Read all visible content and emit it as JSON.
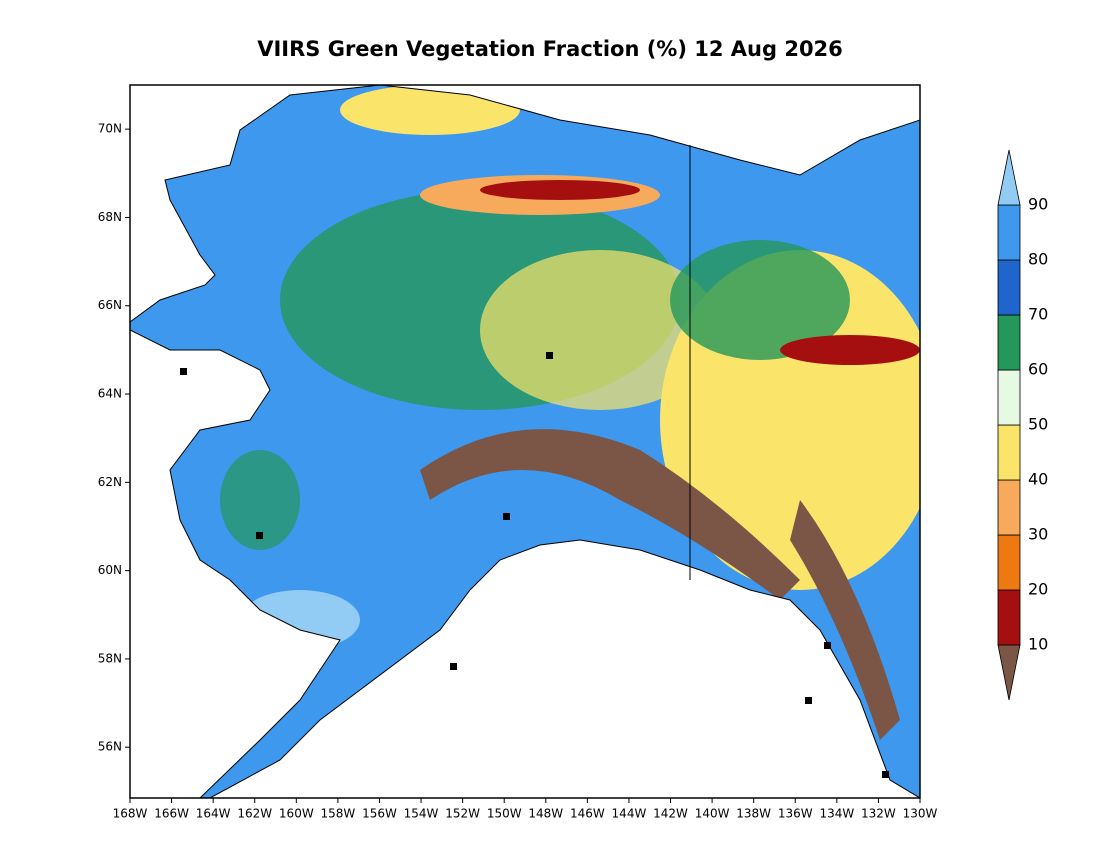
{
  "title": "VIIRS Green Vegetation Fraction (%) 12 Aug 2026",
  "map": {
    "xlim": [
      -168,
      -130
    ],
    "ylim": [
      54.85,
      71
    ],
    "xticks": [
      {
        "value": -168,
        "label": "168W"
      },
      {
        "value": -166,
        "label": "166W"
      },
      {
        "value": -164,
        "label": "164W"
      },
      {
        "value": -162,
        "label": "162W"
      },
      {
        "value": -160,
        "label": "160W"
      },
      {
        "value": -158,
        "label": "158W"
      },
      {
        "value": -156,
        "label": "156W"
      },
      {
        "value": -154,
        "label": "154W"
      },
      {
        "value": -152,
        "label": "152W"
      },
      {
        "value": -150,
        "label": "150W"
      },
      {
        "value": -148,
        "label": "148W"
      },
      {
        "value": -146,
        "label": "146W"
      },
      {
        "value": -144,
        "label": "144W"
      },
      {
        "value": -142,
        "label": "142W"
      },
      {
        "value": -140,
        "label": "140W"
      },
      {
        "value": -138,
        "label": "138W"
      },
      {
        "value": -136,
        "label": "136W"
      },
      {
        "value": -134,
        "label": "134W"
      },
      {
        "value": -132,
        "label": "132W"
      },
      {
        "value": -130,
        "label": "130W"
      }
    ],
    "yticks": [
      {
        "value": 56,
        "label": "56N"
      },
      {
        "value": 58,
        "label": "58N"
      },
      {
        "value": 60,
        "label": "60N"
      },
      {
        "value": 62,
        "label": "62N"
      },
      {
        "value": 64,
        "label": "64N"
      },
      {
        "value": 66,
        "label": "66N"
      },
      {
        "value": 68,
        "label": "68N"
      },
      {
        "value": 70,
        "label": "70N"
      }
    ]
  },
  "colorbar": {
    "levels": [
      10,
      20,
      30,
      40,
      50,
      60,
      70,
      80,
      90
    ],
    "colors": [
      "#7b5646",
      "#a50f0f",
      "#ee7812",
      "#f7aa5c",
      "#fbe46a",
      "#e6f9e3",
      "#24975a",
      "#1f66cc",
      "#3d98ee",
      "#92cbf3"
    ]
  }
}
